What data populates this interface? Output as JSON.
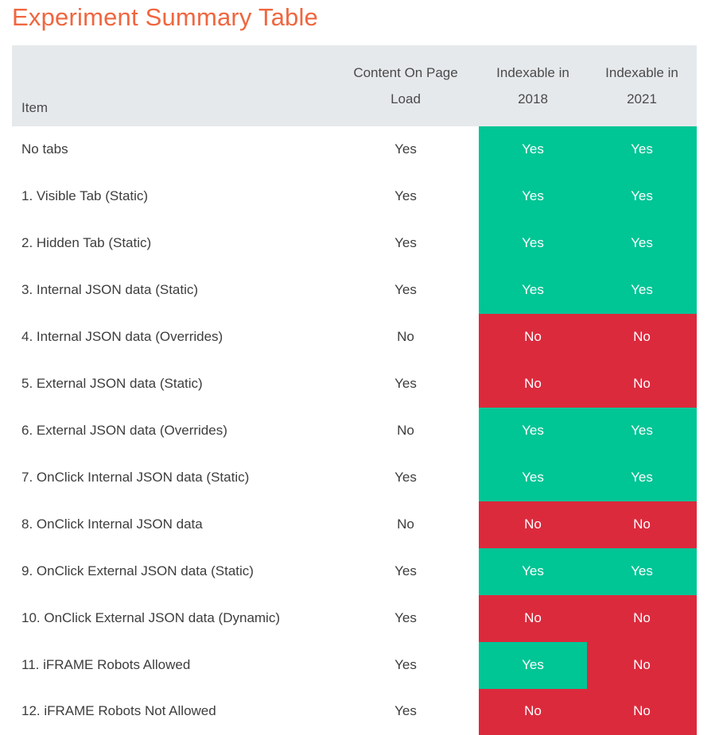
{
  "title": "Experiment Summary Table",
  "headers": {
    "item": "Item",
    "content_on_page_load_line1": "Content On Page",
    "content_on_page_load_line2": "Load",
    "indexable_2018_line1": "Indexable in",
    "indexable_2018_line2": "2018",
    "indexable_2021_line1": "Indexable in",
    "indexable_2021_line2": "2021"
  },
  "colors": {
    "yes": "#00c595",
    "no": "#dc2a3d",
    "title": "#f0663f",
    "header_bg": "#e6e9ec"
  },
  "rows": [
    {
      "item": "No tabs",
      "load": "Yes",
      "idx2018": "Yes",
      "idx2021": "Yes"
    },
    {
      "item": "1. Visible Tab (Static)",
      "load": "Yes",
      "idx2018": "Yes",
      "idx2021": "Yes"
    },
    {
      "item": "2. Hidden Tab (Static)",
      "load": "Yes",
      "idx2018": "Yes",
      "idx2021": "Yes"
    },
    {
      "item": "3. Internal JSON data (Static)",
      "load": "Yes",
      "idx2018": "Yes",
      "idx2021": "Yes"
    },
    {
      "item": "4. Internal JSON data (Overrides)",
      "load": "No",
      "idx2018": "No",
      "idx2021": "No"
    },
    {
      "item": "5. External JSON data (Static)",
      "load": "Yes",
      "idx2018": "No",
      "idx2021": "No"
    },
    {
      "item": "6. External JSON data (Overrides)",
      "load": "No",
      "idx2018": "Yes",
      "idx2021": "Yes"
    },
    {
      "item": "7. OnClick Internal JSON data (Static)",
      "load": "Yes",
      "idx2018": "Yes",
      "idx2021": "Yes"
    },
    {
      "item": "8. OnClick Internal JSON data",
      "load": "No",
      "idx2018": "No",
      "idx2021": "No"
    },
    {
      "item": "9. OnClick External JSON data (Static)",
      "load": "Yes",
      "idx2018": "Yes",
      "idx2021": "Yes"
    },
    {
      "item": "10. OnClick External JSON data (Dynamic)",
      "load": "Yes",
      "idx2018": "No",
      "idx2021": "No"
    },
    {
      "item": "11. iFRAME Robots Allowed",
      "load": "Yes",
      "idx2018": "Yes",
      "idx2021": "No"
    },
    {
      "item": "12. iFRAME Robots Not Allowed",
      "load": "Yes",
      "idx2018": "No",
      "idx2021": "No"
    }
  ]
}
